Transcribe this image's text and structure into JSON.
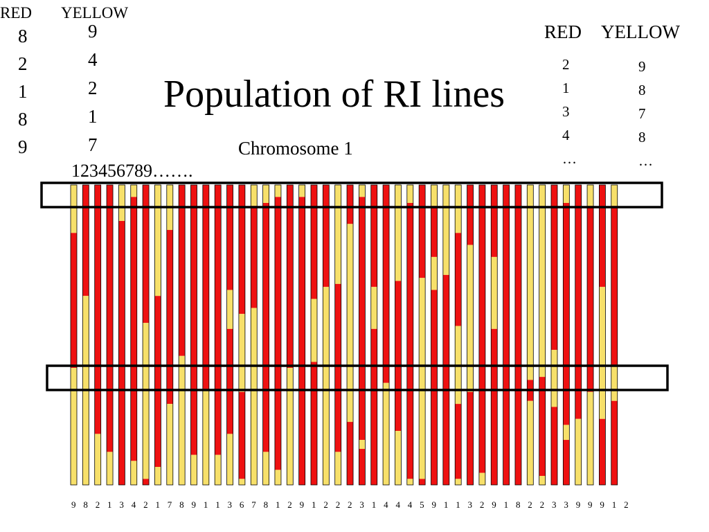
{
  "title": "Population of RI lines",
  "chromosome_label": "Chromosome 1",
  "line_indices": "123456789…….",
  "top_left": {
    "red_label": "RED",
    "yellow_label": "YELLOW",
    "red_values": [
      "8",
      "2",
      "1",
      "8",
      "9"
    ],
    "yellow_values": [
      "9",
      "4",
      "2",
      "1",
      "7"
    ]
  },
  "top_right": {
    "red_label": "RED",
    "yellow_label": "YELLOW",
    "red_values": [
      "2",
      "1",
      "3",
      "4",
      "…"
    ],
    "yellow_values": [
      "9",
      "8",
      "7",
      "8",
      "…"
    ]
  },
  "bottom_numbers": [
    "9",
    "8",
    "2",
    "1",
    "3",
    "4",
    "2",
    "1",
    "7",
    "8",
    "9",
    "1",
    "1",
    "3",
    "6",
    "7",
    "8",
    "1",
    "2",
    "9",
    "1",
    "2",
    "2",
    "2",
    "3",
    "1",
    "4",
    "4",
    "4",
    "5",
    "9",
    "1",
    "1",
    "3",
    "2",
    "9",
    "1",
    "8",
    "2",
    "2",
    "3",
    "3",
    "9",
    "9",
    "9",
    "1",
    "2"
  ],
  "colors": {
    "red": "#ee1111",
    "yellow": "#f7e06a",
    "outline": "#000000"
  },
  "chromosomes": [
    [
      [
        "Y",
        0.16
      ],
      [
        "R",
        0.61
      ],
      [
        "Y",
        1.0
      ]
    ],
    [
      [
        "R",
        0.37
      ],
      [
        "Y",
        1.0
      ]
    ],
    [
      [
        "R",
        0.83
      ],
      [
        "Y",
        1.0
      ]
    ],
    [
      [
        "R",
        0.89
      ],
      [
        "Y",
        1.0
      ]
    ],
    [
      [
        "Y",
        0.12
      ],
      [
        "R",
        1.0
      ]
    ],
    [
      [
        "Y",
        0.04
      ],
      [
        "R",
        0.92
      ],
      [
        "Y",
        1.0
      ]
    ],
    [
      [
        "R",
        0.46
      ],
      [
        "Y",
        0.98
      ],
      [
        "R",
        1.0
      ]
    ],
    [
      [
        "Y",
        0.37
      ],
      [
        "R",
        0.94
      ],
      [
        "Y",
        1.0
      ]
    ],
    [
      [
        "Y",
        0.15
      ],
      [
        "R",
        0.73
      ],
      [
        "Y",
        1.0
      ]
    ],
    [
      [
        "R",
        0.57
      ],
      [
        "Y",
        1.0
      ]
    ],
    [
      [
        "R",
        0.9
      ],
      [
        "Y",
        1.0
      ]
    ],
    [
      [
        "R",
        0.68
      ],
      [
        "Y",
        1.0
      ]
    ],
    [
      [
        "R",
        0.9
      ],
      [
        "Y",
        1.0
      ]
    ],
    [
      [
        "R",
        0.35
      ],
      [
        "Y",
        0.48
      ],
      [
        "R",
        0.83
      ],
      [
        "Y",
        1.0
      ]
    ],
    [
      [
        "R",
        0.43
      ],
      [
        "Y",
        0.69
      ],
      [
        "R",
        0.98
      ],
      [
        "Y",
        1.0
      ]
    ],
    [
      [
        "Y",
        0.07
      ],
      [
        "R",
        0.41
      ],
      [
        "Y",
        1.0
      ]
    ],
    [
      [
        "Y",
        0.06
      ],
      [
        "R",
        0.89
      ],
      [
        "Y",
        1.0
      ]
    ],
    [
      [
        "Y",
        0.04
      ],
      [
        "R",
        0.95
      ],
      [
        "Y",
        1.0
      ]
    ],
    [
      [
        "R",
        0.61
      ],
      [
        "Y",
        1.0
      ]
    ],
    [
      [
        "Y",
        0.04
      ],
      [
        "R",
        1.0
      ]
    ],
    [
      [
        "R",
        0.38
      ],
      [
        "Y",
        0.59
      ],
      [
        "R",
        1.0
      ]
    ],
    [
      [
        "R",
        0.34
      ],
      [
        "Y",
        1.0
      ]
    ],
    [
      [
        "Y",
        0.33
      ],
      [
        "R",
        0.89
      ],
      [
        "Y",
        1.0
      ]
    ],
    [
      [
        "R",
        0.13
      ],
      [
        "Y",
        0.79
      ],
      [
        "R",
        1.0
      ]
    ],
    [
      [
        "Y",
        0.04
      ],
      [
        "R",
        0.85
      ],
      [
        "Y",
        0.88
      ],
      [
        "R",
        1.0
      ]
    ],
    [
      [
        "R",
        0.34
      ],
      [
        "Y",
        0.48
      ],
      [
        "R",
        1.0
      ]
    ],
    [
      [
        "R",
        0.66
      ],
      [
        "Y",
        1.0
      ]
    ],
    [
      [
        "Y",
        0.32
      ],
      [
        "R",
        0.82
      ],
      [
        "Y",
        1.0
      ]
    ],
    [
      [
        "Y",
        0.06
      ],
      [
        "R",
        0.98
      ],
      [
        "Y",
        1.0
      ]
    ],
    [
      [
        "R",
        0.31
      ],
      [
        "Y",
        0.98
      ],
      [
        "R",
        1.0
      ]
    ],
    [
      [
        "Y",
        0.07
      ],
      [
        "R",
        0.24
      ],
      [
        "Y",
        0.35
      ],
      [
        "R",
        1.0
      ]
    ],
    [
      [
        "Y",
        0.3
      ],
      [
        "R",
        1.0
      ]
    ],
    [
      [
        "Y",
        0.16
      ],
      [
        "R",
        0.47
      ],
      [
        "Y",
        0.73
      ],
      [
        "R",
        0.98
      ],
      [
        "Y",
        1.0
      ]
    ],
    [
      [
        "R",
        0.2
      ],
      [
        "Y",
        0.69
      ],
      [
        "R",
        1.0
      ]
    ],
    [
      [
        "R",
        0.96
      ],
      [
        "Y",
        1.0
      ]
    ],
    [
      [
        "R",
        0.24
      ],
      [
        "Y",
        0.48
      ],
      [
        "R",
        1.0
      ]
    ],
    [
      [
        "R",
        1.0
      ]
    ],
    [
      [
        "R",
        1.0
      ]
    ],
    [
      [
        "Y",
        0.65
      ],
      [
        "R",
        0.72
      ],
      [
        "Y",
        1.0
      ]
    ],
    [
      [
        "Y",
        0.64
      ],
      [
        "R",
        0.97
      ],
      [
        "Y",
        1.0
      ]
    ],
    [
      [
        "R",
        0.55
      ],
      [
        "Y",
        0.74
      ],
      [
        "R",
        1.0
      ]
    ],
    [
      [
        "Y",
        0.06
      ],
      [
        "R",
        0.8
      ],
      [
        "Y",
        0.85
      ],
      [
        "R",
        1.0
      ]
    ],
    [
      [
        "R",
        0.78
      ],
      [
        "Y",
        1.0
      ]
    ],
    [
      [
        "Y",
        0.07
      ],
      [
        "R",
        0.69
      ],
      [
        "Y",
        1.0
      ]
    ],
    [
      [
        "R",
        0.34
      ],
      [
        "Y",
        0.78
      ],
      [
        "R",
        1.0
      ]
    ],
    [
      [
        "Y",
        0.07
      ],
      [
        "R",
        0.6
      ],
      [
        "Y",
        0.72
      ],
      [
        "R",
        1.0
      ]
    ]
  ]
}
